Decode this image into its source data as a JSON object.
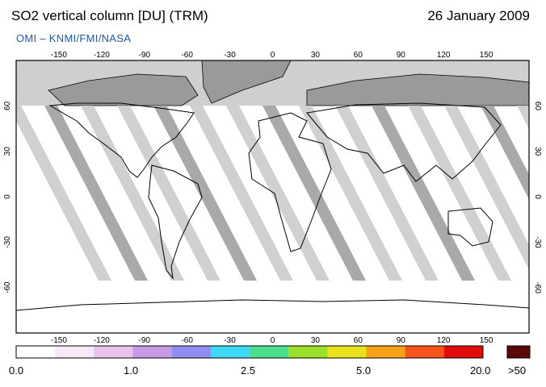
{
  "header": {
    "title": "SO2 vertical column [DU] (TRM)",
    "date": "26 January 2009",
    "subtitle": "OMI  –  KNMI/FMI/NASA"
  },
  "axes": {
    "longitude_ticks": [
      "-150",
      "-120",
      "-90",
      "-60",
      "-30",
      "0",
      "30",
      "60",
      "90",
      "120",
      "150"
    ],
    "latitude_ticks": [
      "60",
      "30",
      "0",
      "-30",
      "-60"
    ]
  },
  "colorbar": {
    "labels": [
      "0.0",
      "1.0",
      "2.5",
      "5.0",
      "20.0"
    ],
    "overflow_label": ">50",
    "colors": [
      "#ffffff",
      "#f6e8f6",
      "#e8c3ec",
      "#c79ae6",
      "#8e8ef0",
      "#3fd8f6",
      "#4ce08e",
      "#9be02a",
      "#e9e21c",
      "#f7a11b",
      "#f5551a",
      "#e20b0b"
    ],
    "overflow_color": "#5a0808"
  }
}
